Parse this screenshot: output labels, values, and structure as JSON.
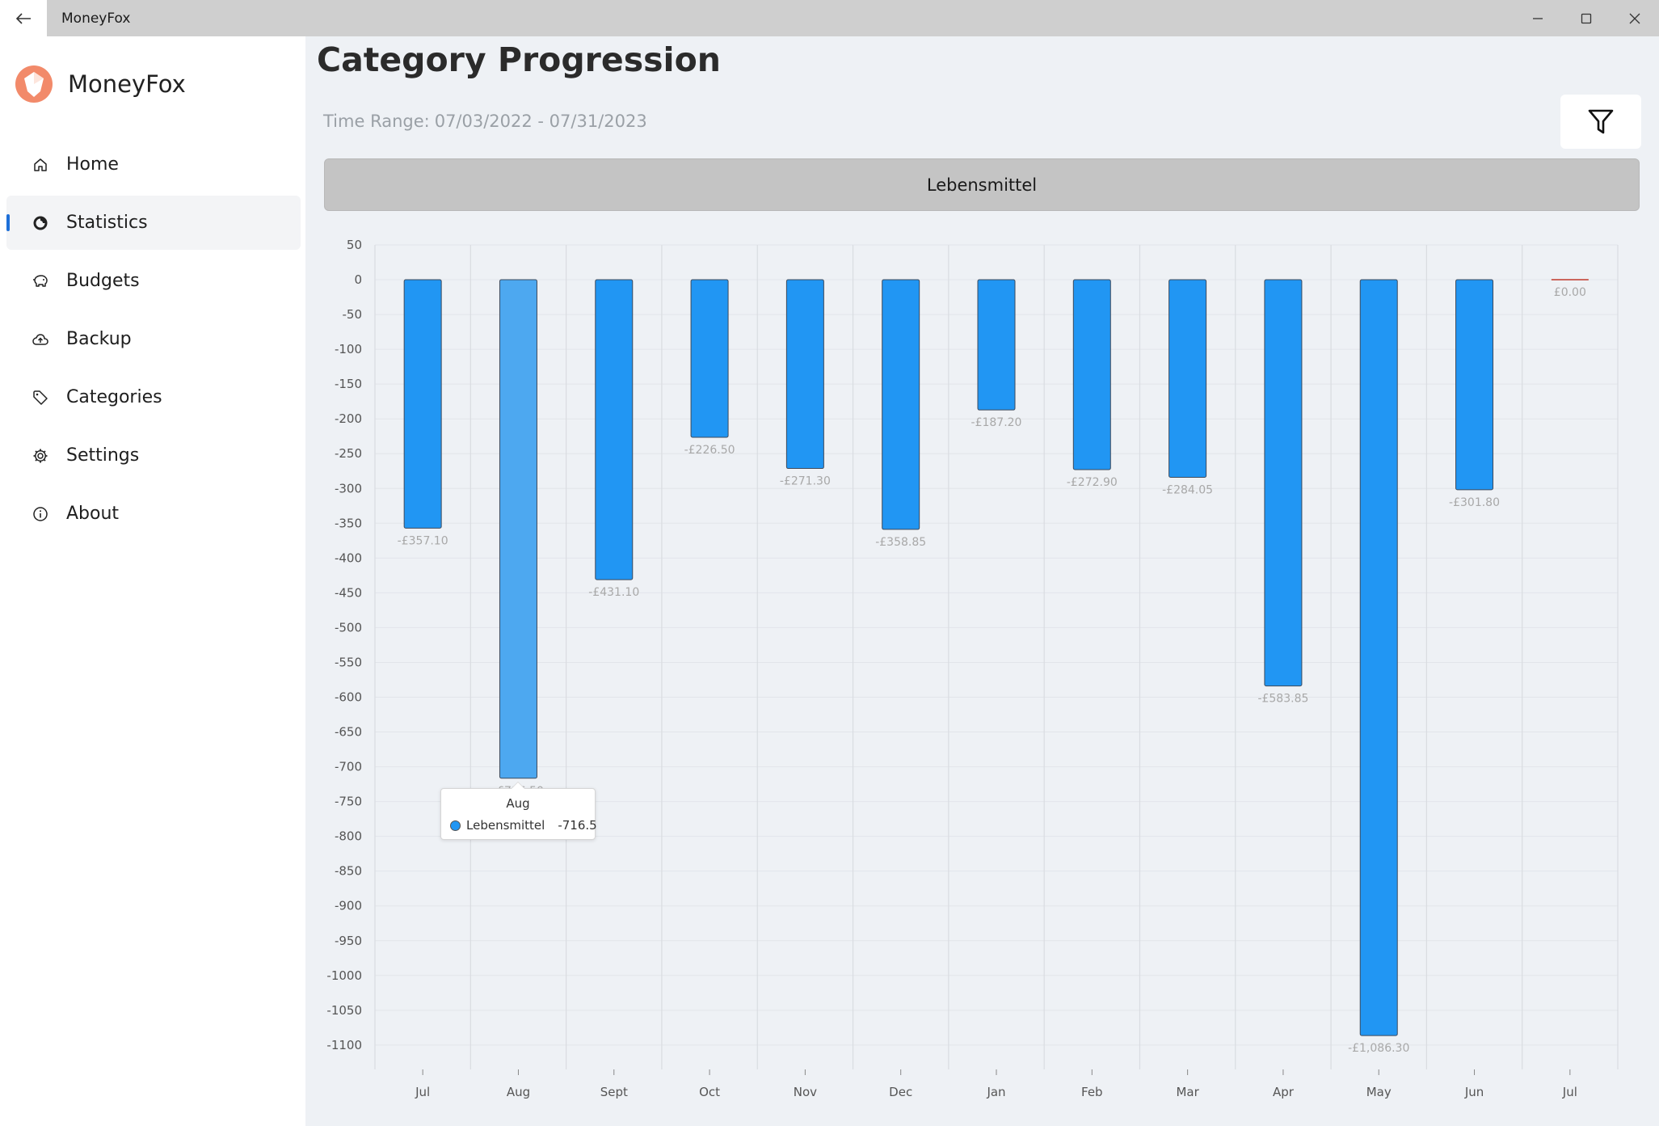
{
  "window": {
    "title": "MoneyFox"
  },
  "sidebar": {
    "brand": "MoneyFox",
    "items": [
      {
        "label": "Home",
        "icon": "home-icon"
      },
      {
        "label": "Statistics",
        "icon": "statistics-icon",
        "active": true
      },
      {
        "label": "Budgets",
        "icon": "piggy-bank-icon"
      },
      {
        "label": "Backup",
        "icon": "cloud-upload-icon"
      },
      {
        "label": "Categories",
        "icon": "tag-icon"
      },
      {
        "label": "Settings",
        "icon": "gear-icon"
      },
      {
        "label": "About",
        "icon": "info-icon"
      }
    ]
  },
  "main": {
    "title": "Category Progression",
    "time_range_label": "Time Range:",
    "time_range_value": "07/03/2022 - 07/31/2023",
    "category": "Lebensmittel"
  },
  "colors": {
    "bar": "#2196f3",
    "bar_highlight": "#4da8f0",
    "zero_bar": "#c0392b",
    "accent": "#1d6fd8"
  },
  "tooltip": {
    "title": "Aug",
    "series": "Lebensmittel",
    "value": "-716.5"
  },
  "chart_data": {
    "type": "bar",
    "categories": [
      "Jul",
      "Aug",
      "Sept",
      "Oct",
      "Nov",
      "Dec",
      "Jan",
      "Feb",
      "Mar",
      "Apr",
      "May",
      "Jun",
      "Jul"
    ],
    "series": [
      {
        "values": [
          -357.1,
          -716.5,
          -431.1,
          -226.5,
          -271.3,
          -358.85,
          -187.2,
          -272.9,
          -284.05,
          -583.85,
          -1086.3,
          -301.8,
          0.0
        ]
      }
    ],
    "data_labels": [
      "-£357.10",
      "-£716.50",
      "-£431.10",
      "-£226.50",
      "-£271.30",
      "-£358.85",
      "-£187.20",
      "-£272.90",
      "-£284.05",
      "-£583.85",
      "-£1,086.30",
      "-£301.80",
      "£0.00"
    ],
    "highlighted_index": 1,
    "yticks": [
      50,
      0,
      -50,
      -100,
      -150,
      -200,
      -250,
      -300,
      -350,
      -400,
      -450,
      -500,
      -550,
      -600,
      -650,
      -700,
      -750,
      -800,
      -850,
      -900,
      -950,
      -1000,
      -1050,
      -1100
    ],
    "ylim": [
      -1135,
      50
    ],
    "grid": true,
    "legend": "none",
    "title": "",
    "xlabel": "",
    "ylabel": ""
  }
}
